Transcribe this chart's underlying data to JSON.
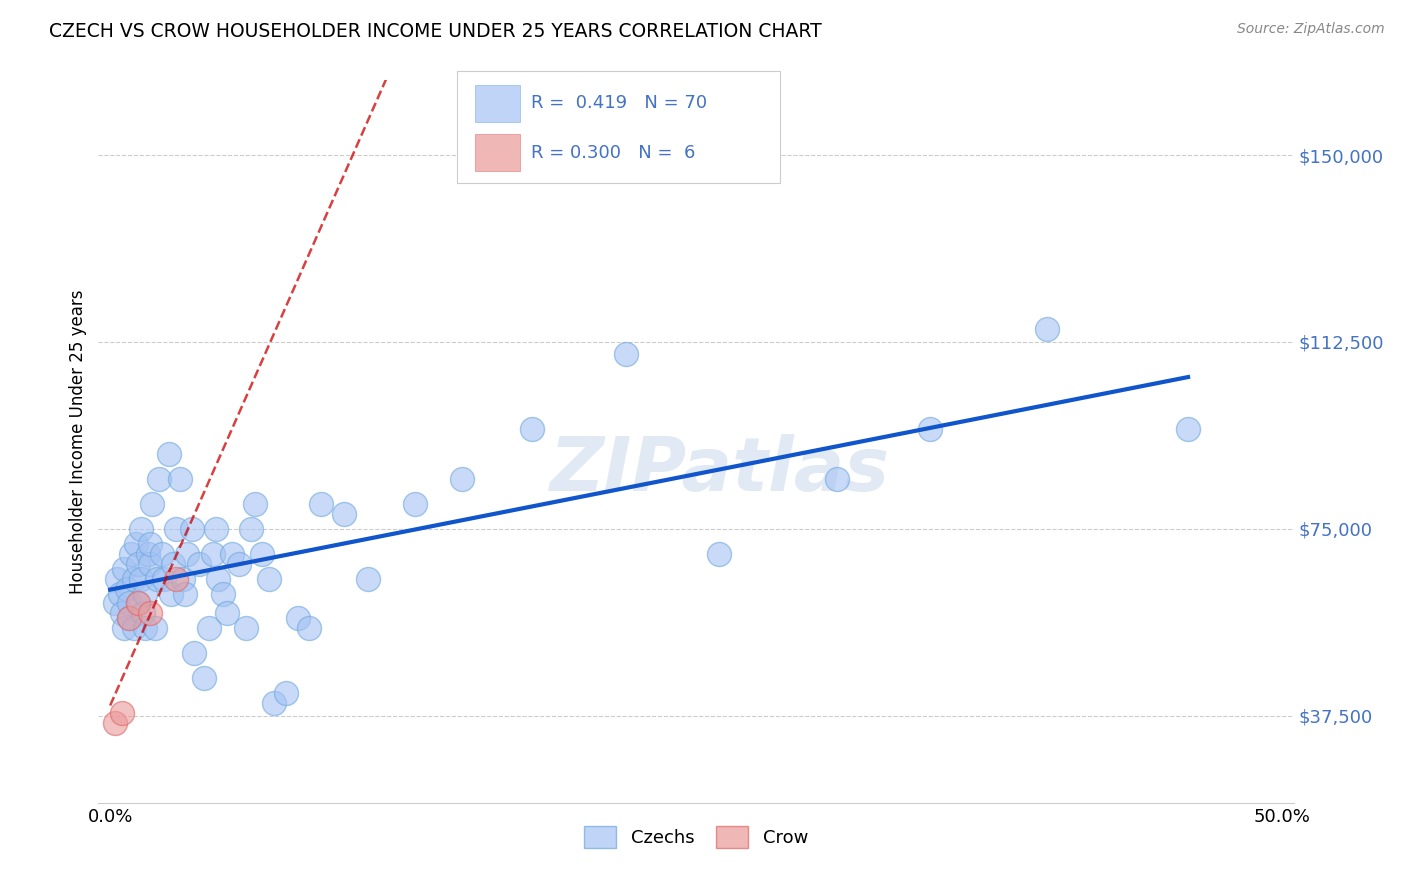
{
  "title": "CZECH VS CROW HOUSEHOLDER INCOME UNDER 25 YEARS CORRELATION CHART",
  "source": "Source: ZipAtlas.com",
  "ylabel_label": "Householder Income Under 25 years",
  "ylim": [
    20000,
    165000
  ],
  "xlim": [
    -0.005,
    0.505
  ],
  "blue_color": "#a4c2f4",
  "blue_edge_color": "#6fa8dc",
  "blue_line_color": "#1155cc",
  "pink_color": "#ea9999",
  "pink_edge_color": "#e06666",
  "pink_line_color": "#cc0000",
  "watermark": "ZIPatlas",
  "czechs_label": "Czechs",
  "crow_label": "Crow",
  "legend_blue_r_val": "0.419",
  "legend_blue_n_val": "70",
  "legend_pink_r_val": "0.300",
  "legend_pink_n_val": "6",
  "czechs_x": [
    0.002,
    0.003,
    0.004,
    0.005,
    0.006,
    0.006,
    0.007,
    0.008,
    0.008,
    0.009,
    0.01,
    0.01,
    0.011,
    0.012,
    0.012,
    0.013,
    0.013,
    0.014,
    0.015,
    0.015,
    0.016,
    0.017,
    0.017,
    0.018,
    0.019,
    0.02,
    0.021,
    0.022,
    0.023,
    0.025,
    0.026,
    0.027,
    0.028,
    0.03,
    0.031,
    0.032,
    0.033,
    0.035,
    0.036,
    0.038,
    0.04,
    0.042,
    0.044,
    0.045,
    0.046,
    0.048,
    0.05,
    0.052,
    0.055,
    0.058,
    0.06,
    0.062,
    0.065,
    0.068,
    0.07,
    0.075,
    0.08,
    0.085,
    0.09,
    0.1,
    0.11,
    0.13,
    0.15,
    0.18,
    0.22,
    0.26,
    0.31,
    0.35,
    0.4,
    0.46
  ],
  "czechs_y": [
    60000,
    65000,
    62000,
    58000,
    67000,
    55000,
    63000,
    60000,
    57000,
    70000,
    55000,
    65000,
    72000,
    60000,
    68000,
    65000,
    75000,
    58000,
    55000,
    62000,
    70000,
    68000,
    72000,
    80000,
    55000,
    65000,
    85000,
    70000,
    65000,
    90000,
    62000,
    68000,
    75000,
    85000,
    65000,
    62000,
    70000,
    75000,
    50000,
    68000,
    45000,
    55000,
    70000,
    75000,
    65000,
    62000,
    58000,
    70000,
    68000,
    55000,
    75000,
    80000,
    70000,
    65000,
    40000,
    42000,
    57000,
    55000,
    80000,
    78000,
    65000,
    80000,
    85000,
    95000,
    110000,
    70000,
    85000,
    95000,
    115000,
    95000
  ],
  "crow_x": [
    0.002,
    0.005,
    0.008,
    0.012,
    0.017,
    0.028
  ],
  "crow_y": [
    36000,
    38000,
    57000,
    60000,
    58000,
    65000
  ]
}
